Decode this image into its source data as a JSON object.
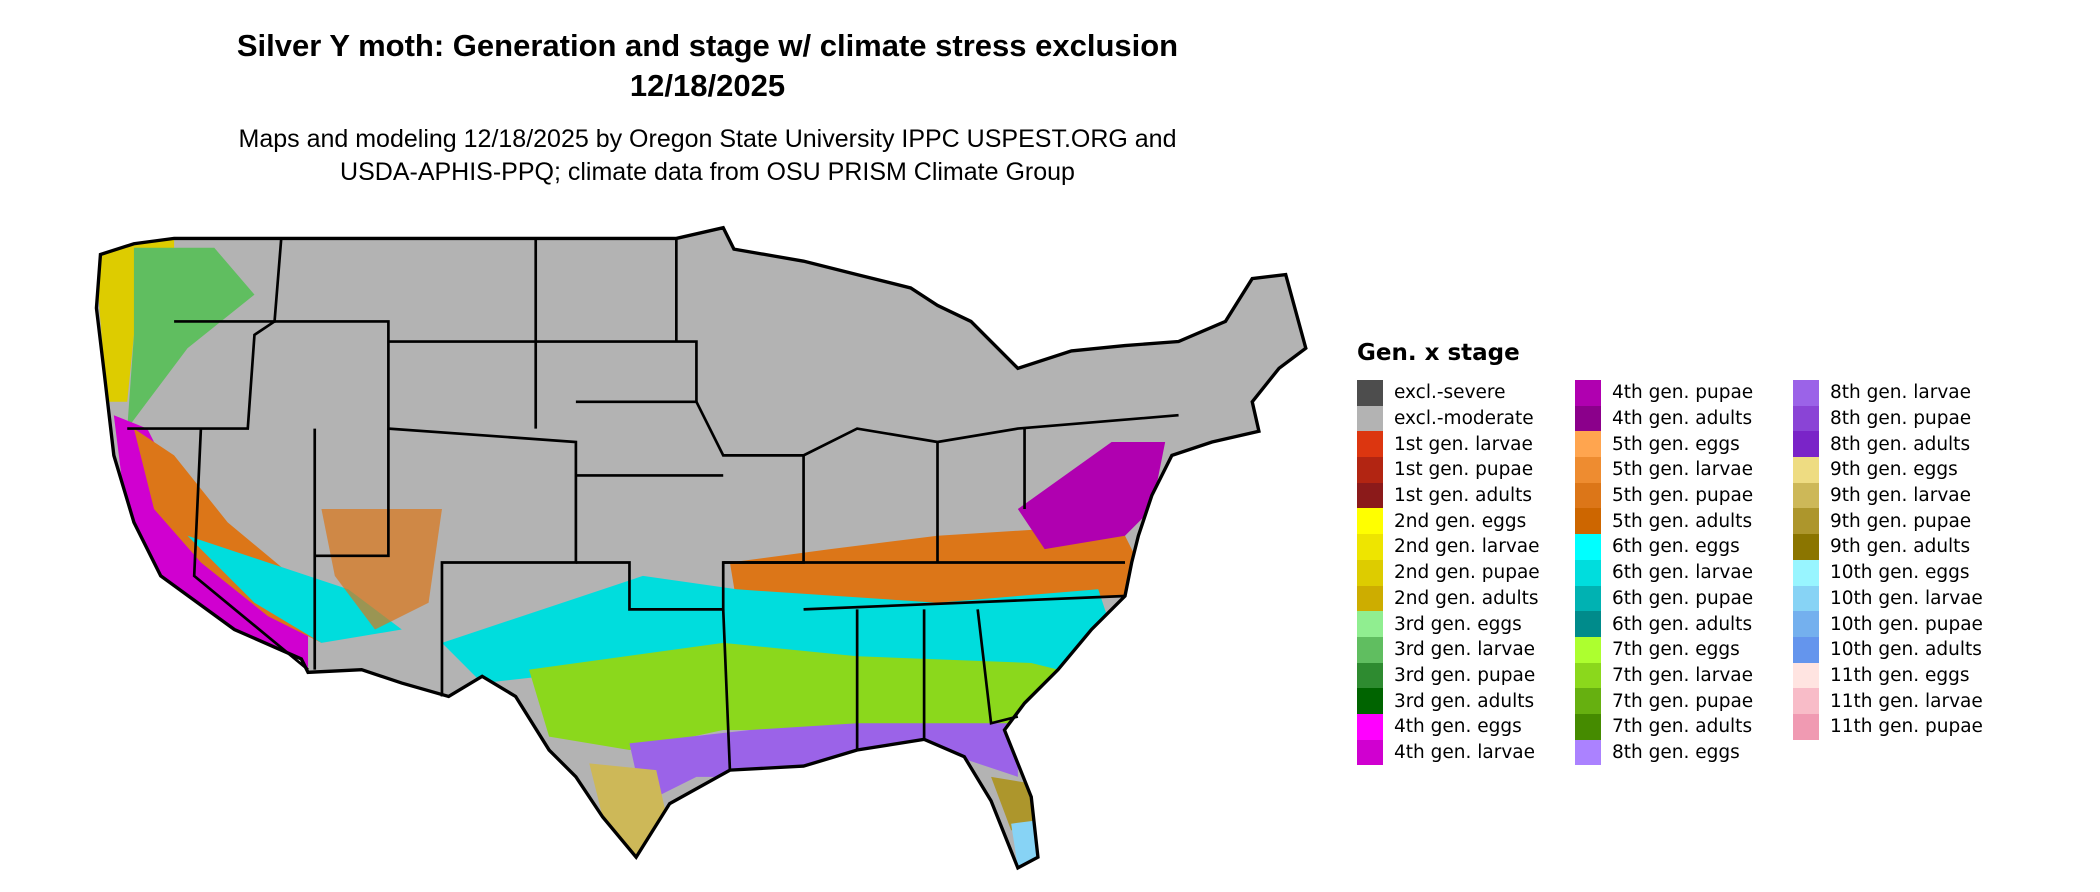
{
  "title_line1": "Silver Y moth: Generation and stage w/ climate stress exclusion",
  "title_line2": "12/18/2025",
  "subtitle_line1": "Maps and modeling 12/18/2025 by Oregon State University IPPC USPEST.ORG and",
  "subtitle_line2": "USDA-APHIS-PPQ; climate data from OSU PRISM Climate Group",
  "legend": {
    "title": "Gen. x stage",
    "columns": [
      [
        {
          "label": "excl.-severe",
          "color": "#4d4d4d"
        },
        {
          "label": "excl.-moderate",
          "color": "#b3b3b3"
        },
        {
          "label": "1st gen. larvae",
          "color": "#dc3610"
        },
        {
          "label": "1st gen. pupae",
          "color": "#b22512"
        },
        {
          "label": "1st gen. adults",
          "color": "#8b1a1a"
        },
        {
          "label": "2nd gen. eggs",
          "color": "#ffff00"
        },
        {
          "label": "2nd gen. larvae",
          "color": "#eee500"
        },
        {
          "label": "2nd gen. pupae",
          "color": "#ddcc00"
        },
        {
          "label": "2nd gen. adults",
          "color": "#cdad00"
        },
        {
          "label": "3rd gen. eggs",
          "color": "#90ee90"
        },
        {
          "label": "3rd gen. larvae",
          "color": "#60be60"
        },
        {
          "label": "3rd gen. pupae",
          "color": "#2e8b30"
        },
        {
          "label": "3rd gen. adults",
          "color": "#006400"
        },
        {
          "label": "4th gen. eggs",
          "color": "#ff00ff"
        },
        {
          "label": "4th gen. larvae",
          "color": "#d000d0"
        }
      ],
      [
        {
          "label": "4th gen. pupae",
          "color": "#b000b0"
        },
        {
          "label": "4th gen. adults",
          "color": "#8b008b"
        },
        {
          "label": "5th gen. eggs",
          "color": "#ffa54f"
        },
        {
          "label": "5th gen. larvae",
          "color": "#ee8c30"
        },
        {
          "label": "5th gen. pupae",
          "color": "#dc7618"
        },
        {
          "label": "5th gen. adults",
          "color": "#cd6600"
        },
        {
          "label": "6th gen. eggs",
          "color": "#00ffff"
        },
        {
          "label": "6th gen. larvae",
          "color": "#00dddd"
        },
        {
          "label": "6th gen. pupae",
          "color": "#00b2b2"
        },
        {
          "label": "6th gen. adults",
          "color": "#008b8b"
        },
        {
          "label": "7th gen. eggs",
          "color": "#adff2f"
        },
        {
          "label": "7th gen. larvae",
          "color": "#8bd81c"
        },
        {
          "label": "7th gen. pupae",
          "color": "#66b010"
        },
        {
          "label": "7th gen. adults",
          "color": "#458b00"
        },
        {
          "label": "8th gen. eggs",
          "color": "#ab82ff"
        }
      ],
      [
        {
          "label": "8th gen. larvae",
          "color": "#9b63e8"
        },
        {
          "label": "8th gen. pupae",
          "color": "#8a44d6"
        },
        {
          "label": "8th gen. adults",
          "color": "#7a24c8"
        },
        {
          "label": "9th gen. eggs",
          "color": "#eedc82"
        },
        {
          "label": "9th gen. larvae",
          "color": "#cdb858"
        },
        {
          "label": "9th gen. pupae",
          "color": "#ad962c"
        },
        {
          "label": "9th gen. adults",
          "color": "#8b7500"
        },
        {
          "label": "10th gen. eggs",
          "color": "#98f5ff"
        },
        {
          "label": "10th gen. larvae",
          "color": "#87d3f5"
        },
        {
          "label": "10th gen. pupae",
          "color": "#74b0ee"
        },
        {
          "label": "10th gen. adults",
          "color": "#6495ed"
        },
        {
          "label": "11th gen. eggs",
          "color": "#ffe4e1"
        },
        {
          "label": "11th gen. larvae",
          "color": "#f8bcc8"
        },
        {
          "label": "11th gen. pupae",
          "color": "#f09ab2"
        }
      ]
    ]
  }
}
